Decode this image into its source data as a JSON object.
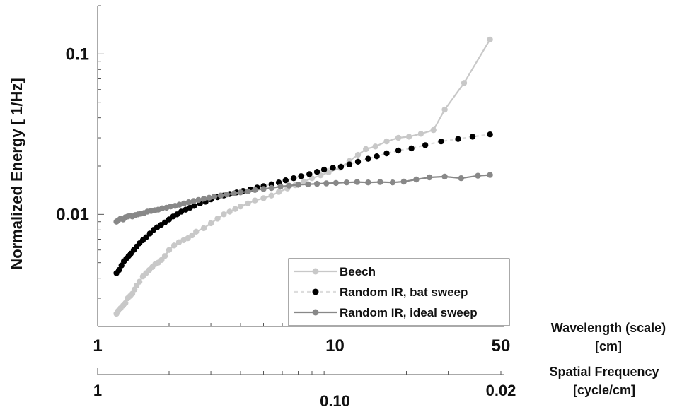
{
  "chart_data": {
    "type": "line",
    "xscale": "log",
    "yscale": "log",
    "xlim": [
      1,
      50
    ],
    "ylim": [
      0.002,
      0.2
    ],
    "ylabel": "Normalized Energy [ 1/Hz]",
    "xlabel": "Wavelength (scale)",
    "xlabel_unit": "[cm]",
    "secondary_xlabel": "Spatial Frequency",
    "secondary_xlabel_unit": "[cycle/cm]",
    "x_ticks": [
      {
        "value": 1,
        "label": "1"
      },
      {
        "value": 10,
        "label": "10"
      },
      {
        "value": 50,
        "label": "50"
      }
    ],
    "secondary_x_ticks": [
      {
        "value": 1,
        "label": "1"
      },
      {
        "value": 10,
        "label": "0.10"
      },
      {
        "value": 50,
        "label": "0.02"
      }
    ],
    "y_ticks": [
      {
        "value": 0.1,
        "label": "0.1"
      },
      {
        "value": 0.01,
        "label": "0.01"
      }
    ],
    "legend_position": "bottom-right",
    "series": [
      {
        "name": "Beech",
        "color": "#c8c8c8",
        "line_color": "#c8c8c8",
        "line_dash": "none",
        "points": [
          [
            1.2,
            0.0024
          ],
          [
            1.22,
            0.0025
          ],
          [
            1.25,
            0.0026
          ],
          [
            1.28,
            0.0027
          ],
          [
            1.31,
            0.0028
          ],
          [
            1.34,
            0.003
          ],
          [
            1.37,
            0.0031
          ],
          [
            1.4,
            0.0032
          ],
          [
            1.43,
            0.0034
          ],
          [
            1.46,
            0.0036
          ],
          [
            1.5,
            0.0038
          ],
          [
            1.55,
            0.0041
          ],
          [
            1.6,
            0.0043
          ],
          [
            1.65,
            0.0045
          ],
          [
            1.7,
            0.0047
          ],
          [
            1.75,
            0.0049
          ],
          [
            1.8,
            0.005
          ],
          [
            1.86,
            0.0052
          ],
          [
            1.92,
            0.0055
          ],
          [
            2.0,
            0.006
          ],
          [
            2.1,
            0.0064
          ],
          [
            2.2,
            0.0067
          ],
          [
            2.3,
            0.0069
          ],
          [
            2.4,
            0.0071
          ],
          [
            2.5,
            0.0074
          ],
          [
            2.6,
            0.0078
          ],
          [
            2.8,
            0.0082
          ],
          [
            3.0,
            0.0088
          ],
          [
            3.2,
            0.0094
          ],
          [
            3.4,
            0.01
          ],
          [
            3.6,
            0.0104
          ],
          [
            3.8,
            0.0108
          ],
          [
            4.0,
            0.0112
          ],
          [
            4.3,
            0.0117
          ],
          [
            4.6,
            0.0122
          ],
          [
            5.0,
            0.0126
          ],
          [
            5.4,
            0.0131
          ],
          [
            5.8,
            0.0138
          ],
          [
            6.3,
            0.0145
          ],
          [
            6.8,
            0.0152
          ],
          [
            7.4,
            0.016
          ],
          [
            8.0,
            0.0168
          ],
          [
            8.7,
            0.0175
          ],
          [
            9.4,
            0.0183
          ],
          [
            10.5,
            0.0195
          ],
          [
            11.5,
            0.0215
          ],
          [
            12.5,
            0.0235
          ],
          [
            13.5,
            0.0255
          ],
          [
            14.8,
            0.0265
          ],
          [
            16.5,
            0.0285
          ],
          [
            18.5,
            0.03
          ],
          [
            20.5,
            0.0305
          ],
          [
            23.0,
            0.0318
          ],
          [
            26.0,
            0.0335
          ],
          [
            29.0,
            0.045
          ],
          [
            35.0,
            0.066
          ],
          [
            45.0,
            0.123
          ]
        ]
      },
      {
        "name": "Random IR, bat sweep",
        "color": "#000000",
        "line_color": "#dddddd",
        "line_dash": "5,4",
        "points": [
          [
            1.2,
            0.0043
          ],
          [
            1.23,
            0.0045
          ],
          [
            1.26,
            0.0048
          ],
          [
            1.29,
            0.0051
          ],
          [
            1.32,
            0.0053
          ],
          [
            1.35,
            0.0055
          ],
          [
            1.38,
            0.0057
          ],
          [
            1.42,
            0.006
          ],
          [
            1.46,
            0.0063
          ],
          [
            1.5,
            0.0066
          ],
          [
            1.55,
            0.0069
          ],
          [
            1.6,
            0.0072
          ],
          [
            1.66,
            0.0076
          ],
          [
            1.72,
            0.008
          ],
          [
            1.78,
            0.0083
          ],
          [
            1.85,
            0.0086
          ],
          [
            1.92,
            0.0089
          ],
          [
            2.0,
            0.0093
          ],
          [
            2.08,
            0.0097
          ],
          [
            2.16,
            0.01
          ],
          [
            2.25,
            0.0104
          ],
          [
            2.35,
            0.0107
          ],
          [
            2.45,
            0.011
          ],
          [
            2.55,
            0.0113
          ],
          [
            2.7,
            0.0117
          ],
          [
            2.85,
            0.012
          ],
          [
            3.0,
            0.0124
          ],
          [
            3.2,
            0.0128
          ],
          [
            3.4,
            0.0131
          ],
          [
            3.6,
            0.0134
          ],
          [
            3.85,
            0.0137
          ],
          [
            4.1,
            0.014
          ],
          [
            4.4,
            0.0143
          ],
          [
            4.7,
            0.0147
          ],
          [
            5.0,
            0.015
          ],
          [
            5.4,
            0.0154
          ],
          [
            5.8,
            0.0158
          ],
          [
            6.2,
            0.0163
          ],
          [
            6.7,
            0.0168
          ],
          [
            7.2,
            0.0173
          ],
          [
            7.8,
            0.0178
          ],
          [
            8.4,
            0.0184
          ],
          [
            9.0,
            0.019
          ],
          [
            9.8,
            0.0195
          ],
          [
            10.6,
            0.0198
          ],
          [
            11.5,
            0.0205
          ],
          [
            12.5,
            0.0213
          ],
          [
            13.8,
            0.0222
          ],
          [
            15.0,
            0.023
          ],
          [
            16.5,
            0.024
          ],
          [
            18.5,
            0.025
          ],
          [
            21.0,
            0.0258
          ],
          [
            24.0,
            0.027
          ],
          [
            28.0,
            0.0285
          ],
          [
            33.0,
            0.0295
          ],
          [
            38.0,
            0.0305
          ],
          [
            45.0,
            0.0315
          ]
        ]
      },
      {
        "name": "Random IR, ideal sweep",
        "color": "#888888",
        "line_color": "#888888",
        "line_dash": "none",
        "points": [
          [
            1.2,
            0.009
          ],
          [
            1.22,
            0.0092
          ],
          [
            1.25,
            0.0094
          ],
          [
            1.28,
            0.0093
          ],
          [
            1.31,
            0.0096
          ],
          [
            1.34,
            0.0097
          ],
          [
            1.37,
            0.0098
          ],
          [
            1.4,
            0.0097
          ],
          [
            1.44,
            0.0099
          ],
          [
            1.48,
            0.01
          ],
          [
            1.52,
            0.0101
          ],
          [
            1.57,
            0.0102
          ],
          [
            1.62,
            0.0104
          ],
          [
            1.68,
            0.0105
          ],
          [
            1.74,
            0.0106
          ],
          [
            1.8,
            0.0107
          ],
          [
            1.87,
            0.0109
          ],
          [
            1.95,
            0.011
          ],
          [
            2.03,
            0.0112
          ],
          [
            2.12,
            0.0113
          ],
          [
            2.21,
            0.0115
          ],
          [
            2.31,
            0.0117
          ],
          [
            2.42,
            0.0119
          ],
          [
            2.54,
            0.0121
          ],
          [
            2.66,
            0.0123
          ],
          [
            2.8,
            0.0125
          ],
          [
            2.95,
            0.0127
          ],
          [
            3.1,
            0.0129
          ],
          [
            3.3,
            0.0131
          ],
          [
            3.5,
            0.0133
          ],
          [
            3.75,
            0.0135
          ],
          [
            4.0,
            0.0137
          ],
          [
            4.3,
            0.0139
          ],
          [
            4.6,
            0.0142
          ],
          [
            5.0,
            0.0144
          ],
          [
            5.4,
            0.0146
          ],
          [
            5.9,
            0.0149
          ],
          [
            6.4,
            0.0151
          ],
          [
            7.0,
            0.0153
          ],
          [
            7.7,
            0.0154
          ],
          [
            8.4,
            0.0155
          ],
          [
            9.2,
            0.0156
          ],
          [
            10.1,
            0.0157
          ],
          [
            11.2,
            0.0158
          ],
          [
            12.4,
            0.0159
          ],
          [
            13.8,
            0.0158
          ],
          [
            15.5,
            0.0159
          ],
          [
            17.5,
            0.0158
          ],
          [
            19.5,
            0.016
          ],
          [
            22.0,
            0.0165
          ],
          [
            25.0,
            0.017
          ],
          [
            29.0,
            0.0172
          ],
          [
            34.0,
            0.0168
          ],
          [
            40.0,
            0.0174
          ],
          [
            45.0,
            0.0176
          ]
        ]
      }
    ]
  }
}
